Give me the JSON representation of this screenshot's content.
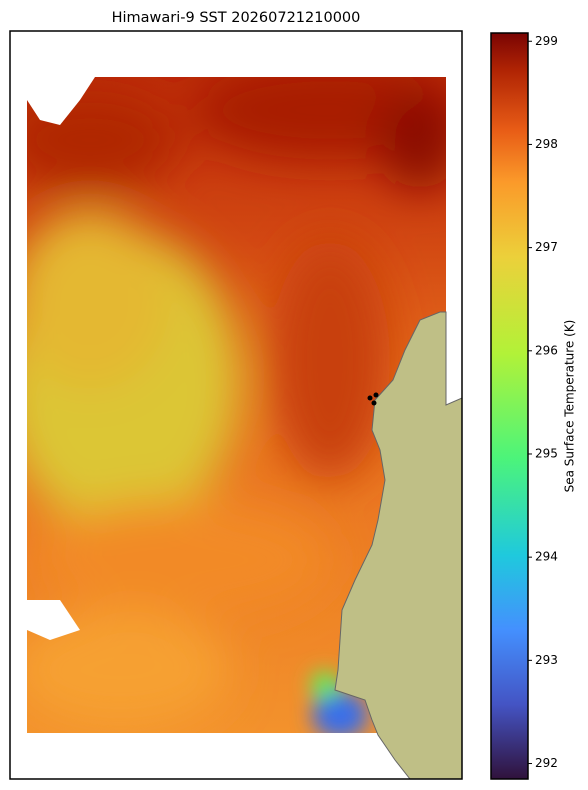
{
  "title": "Himawari-9 SST 20260721210000",
  "colorbar": {
    "label": "Sea Surface Temperature (K)",
    "lim": [
      291.85,
      299.08
    ],
    "ticks": [
      292,
      293,
      294,
      295,
      296,
      297,
      298,
      299
    ]
  }
}
